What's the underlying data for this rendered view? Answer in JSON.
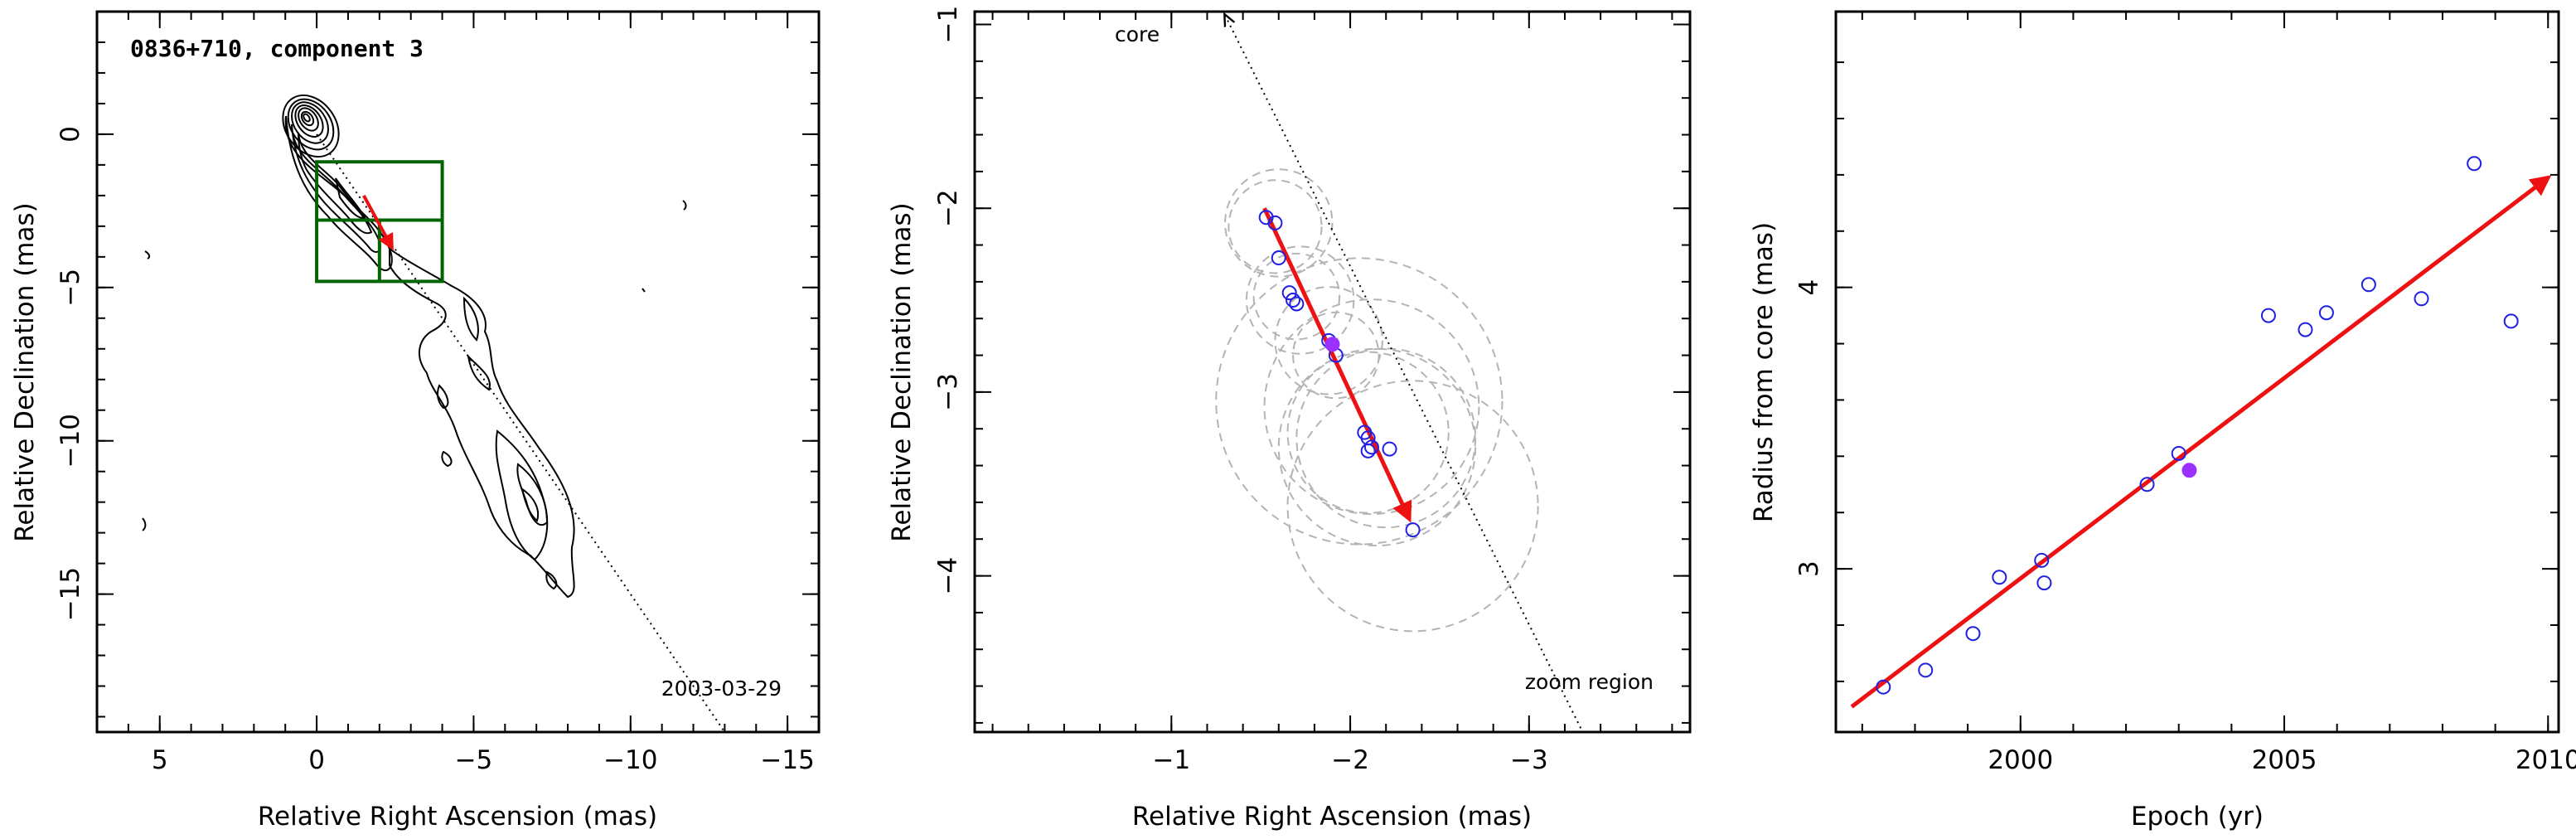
{
  "chart_data": [
    {
      "type": "contour",
      "title": "0836+710, component 3",
      "date_label": "2003-03-29",
      "xlabel": "Relative Right Ascension (mas)",
      "ylabel": "Relative Declination (mas)",
      "xlim": [
        7,
        -16
      ],
      "ylim": [
        -19.5,
        4
      ],
      "xticks": [
        5,
        0,
        -5,
        -10,
        -15
      ],
      "yticks": [
        0,
        -5,
        -10,
        -15
      ],
      "xtick_labels": [
        "5",
        "0",
        "−5",
        "−10",
        "−15"
      ],
      "ytick_labels": [
        "0",
        "−5",
        "−10",
        "−15"
      ],
      "zoom_boxes": [
        {
          "x": [
            0,
            -4
          ],
          "y": [
            -0.9,
            -4.8
          ]
        },
        {
          "x": [
            0,
            -4
          ],
          "y": [
            -2.8,
            -2.8
          ]
        },
        {
          "x": [
            -2,
            -2
          ],
          "y": [
            -2.8,
            -4.8
          ]
        }
      ],
      "direction_line": {
        "from": [
          0,
          0
        ],
        "to": [
          -13,
          -19.5
        ]
      },
      "motion_arrow": {
        "from": [
          -1.5,
          -2.0
        ],
        "to": [
          -2.4,
          -3.7
        ]
      }
    },
    {
      "type": "scatter",
      "xlabel": "Relative Right Ascension (mas)",
      "ylabel": "Relative Declination (mas)",
      "xlim": [
        0.1,
        -3.9
      ],
      "ylim": [
        -4.85,
        -0.93
      ],
      "xticks": [
        -1,
        -2,
        -3
      ],
      "yticks": [
        -1,
        -2,
        -3,
        -4
      ],
      "xtick_labels": [
        "−1",
        "−2",
        "−3"
      ],
      "ytick_labels": [
        "−1",
        "−2",
        "−3",
        "−4"
      ],
      "core_label": "core",
      "zoom_label": "zoom region",
      "points": [
        {
          "x": -1.53,
          "y": -2.05
        },
        {
          "x": -1.58,
          "y": -2.08
        },
        {
          "x": -1.6,
          "y": -2.27
        },
        {
          "x": -1.66,
          "y": -2.46
        },
        {
          "x": -1.68,
          "y": -2.5
        },
        {
          "x": -1.7,
          "y": -2.52
        },
        {
          "x": -1.88,
          "y": -2.72
        },
        {
          "x": -1.92,
          "y": -2.8
        },
        {
          "x": -2.08,
          "y": -3.22
        },
        {
          "x": -2.1,
          "y": -3.25
        },
        {
          "x": -2.12,
          "y": -3.3
        },
        {
          "x": -2.1,
          "y": -3.32
        },
        {
          "x": -2.22,
          "y": -3.31
        },
        {
          "x": -2.35,
          "y": -3.75
        }
      ],
      "highlight_point": {
        "x": -1.9,
        "y": -2.74
      },
      "fit_circles": [
        {
          "x": -1.6,
          "y": -2.08,
          "r": 0.3
        },
        {
          "x": -1.58,
          "y": -2.1,
          "r": 0.26
        },
        {
          "x": -1.72,
          "y": -2.5,
          "r": 0.3
        },
        {
          "x": -1.7,
          "y": -2.48,
          "r": 0.24
        },
        {
          "x": -1.88,
          "y": -2.72,
          "r": 0.3
        },
        {
          "x": -1.92,
          "y": -2.8,
          "r": 0.24
        },
        {
          "x": -2.1,
          "y": -3.22,
          "r": 0.45
        },
        {
          "x": -2.2,
          "y": -3.25,
          "r": 0.5
        },
        {
          "x": -2.15,
          "y": -3.3,
          "r": 0.55
        },
        {
          "x": -2.12,
          "y": -3.08,
          "r": 0.6
        },
        {
          "x": -2.05,
          "y": -3.05,
          "r": 0.8
        },
        {
          "x": -2.35,
          "y": -3.62,
          "r": 0.7
        }
      ],
      "direction_line": {
        "from": [
          -1.3,
          -0.95
        ],
        "to": [
          -3.3,
          -4.85
        ]
      },
      "motion_arrow": {
        "from": [
          -1.52,
          -2.0
        ],
        "to": [
          -2.33,
          -3.69
        ]
      }
    },
    {
      "type": "scatter",
      "xlabel": "Epoch (yr)",
      "ylabel": "Radius from core (mas)",
      "xlim": [
        1996.5,
        2010.2
      ],
      "ylim": [
        2.42,
        4.98
      ],
      "xticks": [
        2000,
        2005,
        2010
      ],
      "yticks": [
        3,
        4
      ],
      "xtick_labels": [
        "2000",
        "2005",
        "2010"
      ],
      "ytick_labels": [
        "3",
        "4"
      ],
      "x": [
        1997.4,
        1998.2,
        1999.1,
        1999.6,
        2000.4,
        2000.45,
        2002.4,
        2003.0,
        2004.7,
        2005.4,
        2005.8,
        2006.6,
        2007.6,
        2008.6,
        2009.3
      ],
      "y": [
        2.58,
        2.64,
        2.77,
        2.97,
        3.03,
        2.95,
        3.3,
        3.41,
        3.9,
        3.85,
        3.91,
        4.01,
        3.96,
        4.44,
        3.88
      ],
      "highlight_point": {
        "x": 2003.2,
        "y": 3.35
      },
      "fit_line": {
        "from": [
          1996.8,
          2.51
        ],
        "to": [
          2010.0,
          4.39
        ]
      }
    }
  ],
  "colors": {
    "axes": "#000000",
    "contours": "#000000",
    "zoom_box": "#006400",
    "motion_arrow": "#ee1111",
    "points": "#1f1fe6",
    "highlight": "#9b30ff",
    "fit_circles": "#b4b4b4"
  }
}
